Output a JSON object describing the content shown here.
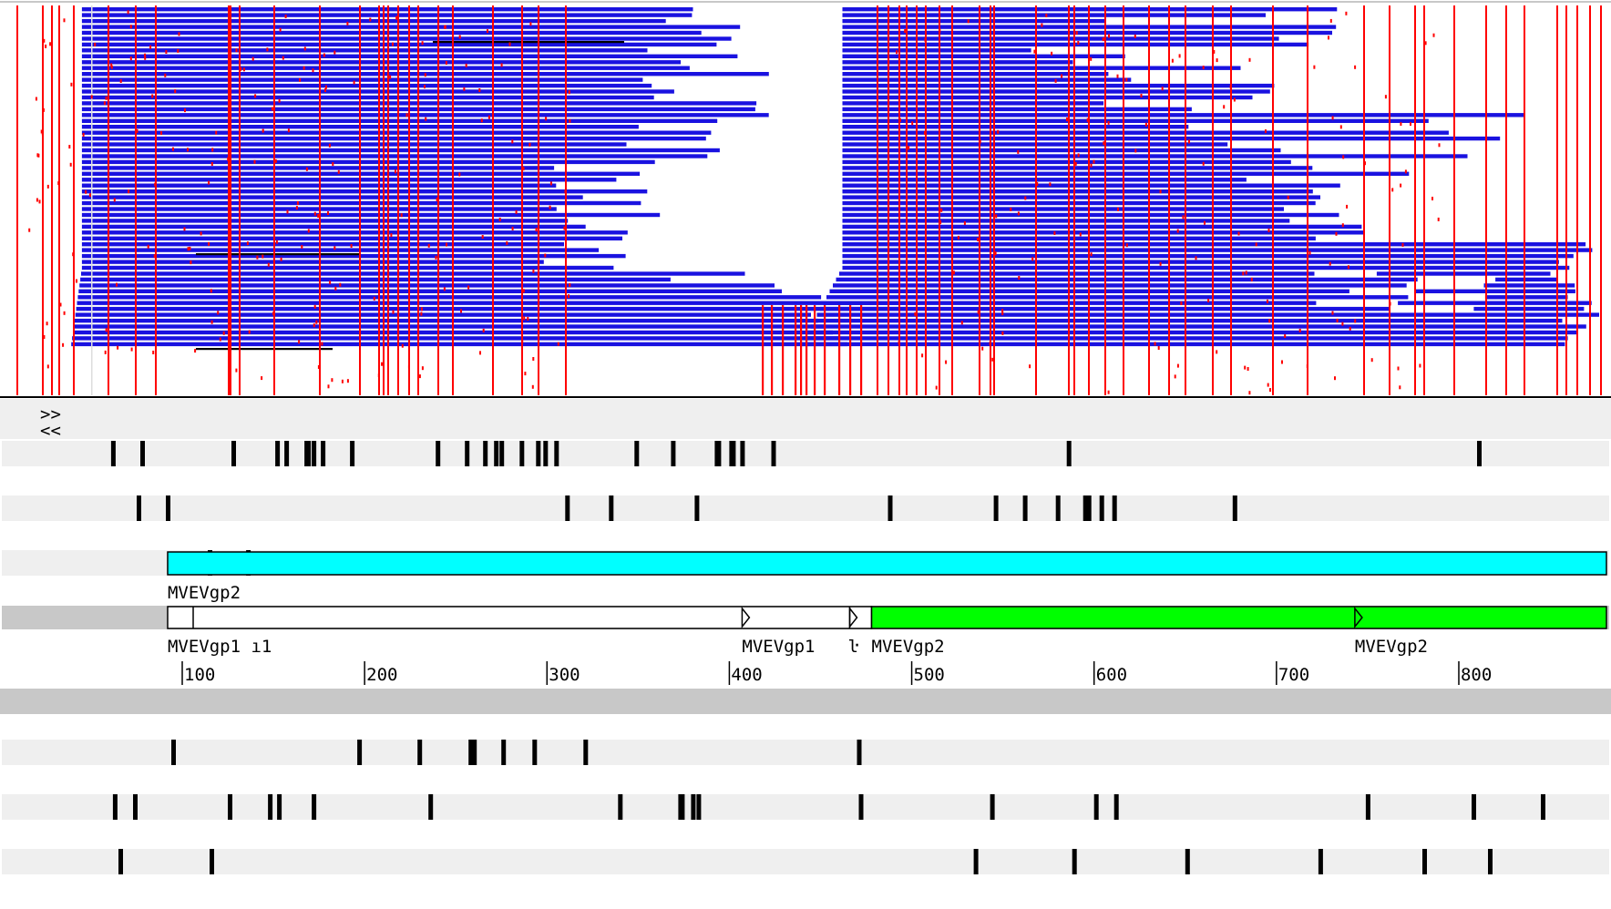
{
  "app": {
    "view": "genome-alignment-viewer"
  },
  "colors": {
    "read": "#1a12e0",
    "mismatch": "#ff0000",
    "track_background": "#efefef",
    "ruler_band": "#c8c8c8",
    "feature_cyan": "#00ffff",
    "feature_green": "#00ff00",
    "tick": "#000000"
  },
  "controls": {
    "scroll_right": ">>",
    "scroll_left": "<<"
  },
  "alignment": {
    "segment_1": {
      "start_base": 45,
      "end_base": 425
    },
    "segment_2": {
      "start_base": 462,
      "end_base": 876
    }
  },
  "frames_forward": [
    [
      62,
      78,
      128,
      152,
      157,
      168,
      169,
      172,
      177,
      193,
      240,
      256,
      266,
      272,
      275,
      286,
      295,
      299,
      305,
      349,
      369,
      393,
      394,
      401,
      402,
      407,
      424,
      586,
      811
    ],
    [
      76,
      92,
      311,
      335,
      382,
      488,
      546,
      562,
      580,
      595,
      597,
      604,
      611,
      677
    ],
    [
      115,
      136
    ]
  ],
  "frames_reverse": [
    [
      95,
      197,
      230,
      258,
      260,
      276,
      293,
      321,
      471
    ],
    [
      63,
      74,
      126,
      148,
      153,
      172,
      236,
      340,
      373,
      374,
      380,
      383,
      472,
      544,
      601,
      612,
      750,
      808,
      846
    ],
    [
      66,
      116,
      535,
      589,
      651,
      724,
      781,
      817
    ]
  ],
  "features": [
    {
      "name": "MVEVgp2",
      "start_base": 92,
      "end_base": 876,
      "color": "cyan"
    }
  ],
  "genes": [
    {
      "label": "MVEVgp1 ı1",
      "start_base": 92,
      "end_base": 407
    },
    {
      "label": "MVEVgp1",
      "start_base": 407,
      "end_base": 466
    },
    {
      "label": "MVEVgp2",
      "start_base": 478,
      "end_base": 876,
      "color": "green"
    },
    {
      "label": "MVEVgp2",
      "start_base": 743,
      "end_base": 876
    }
  ],
  "gene_labels": {
    "feature_top": "MVEVgp2",
    "gene_1": "MVEVgp1 ı1",
    "gene_2": "MVEVgp1",
    "gene_3_small": "ŀ",
    "gene_3": "MVEVgp2",
    "gene_4": "MVEVgp2"
  },
  "ruler": {
    "ticks": [
      100,
      200,
      300,
      400,
      500,
      600,
      700,
      800
    ],
    "labels": [
      "100",
      "200",
      "300",
      "400",
      "500",
      "600",
      "700",
      "800"
    ]
  }
}
